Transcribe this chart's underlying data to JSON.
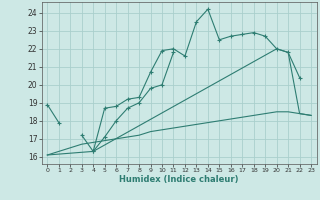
{
  "xlabel": "Humidex (Indice chaleur)",
  "bg_color": "#cde8e5",
  "grid_color": "#aacfcc",
  "line_color": "#2e7d72",
  "xlim": [
    -0.5,
    23.5
  ],
  "ylim": [
    15.6,
    24.6
  ],
  "yticks": [
    16,
    17,
    18,
    19,
    20,
    21,
    22,
    23,
    24
  ],
  "xticks": [
    0,
    1,
    2,
    3,
    4,
    5,
    6,
    7,
    8,
    9,
    10,
    11,
    12,
    13,
    14,
    15,
    16,
    17,
    18,
    19,
    20,
    21,
    22,
    23
  ],
  "series1_x": [
    0,
    1,
    3,
    4,
    5,
    6,
    7,
    8,
    9,
    10,
    11,
    12,
    13,
    14,
    15,
    16,
    17,
    18,
    19,
    20,
    21,
    22
  ],
  "series1_y": [
    18.9,
    17.9,
    17.2,
    16.3,
    18.7,
    18.8,
    19.2,
    19.3,
    20.7,
    21.9,
    22.0,
    21.6,
    23.5,
    24.2,
    22.5,
    22.7,
    22.8,
    22.9,
    22.7,
    22.0,
    21.8,
    20.4
  ],
  "series2_x": [
    4,
    5,
    6,
    7,
    8,
    9,
    10,
    11
  ],
  "series2_y": [
    16.3,
    17.1,
    18.0,
    18.7,
    19.0,
    19.8,
    20.0,
    21.8
  ],
  "series3_x": [
    0,
    1,
    2,
    3,
    4,
    5,
    6,
    7,
    8,
    9,
    10,
    11,
    12,
    13,
    14,
    15,
    16,
    17,
    18,
    19,
    20,
    21,
    22,
    23
  ],
  "series3_y": [
    16.1,
    16.3,
    16.5,
    16.7,
    16.8,
    16.9,
    17.0,
    17.1,
    17.2,
    17.4,
    17.5,
    17.6,
    17.7,
    17.8,
    17.9,
    18.0,
    18.1,
    18.2,
    18.3,
    18.4,
    18.5,
    18.5,
    18.4,
    18.3
  ],
  "series4_x": [
    0,
    4,
    20,
    21,
    22,
    23
  ],
  "series4_y": [
    16.1,
    16.3,
    22.0,
    21.8,
    18.4,
    18.3
  ]
}
